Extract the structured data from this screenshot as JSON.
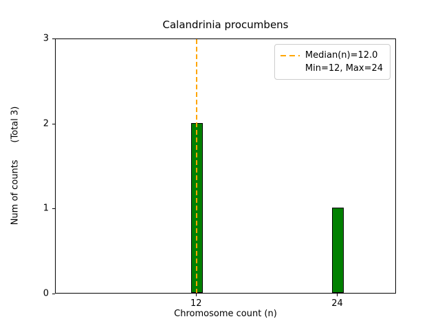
{
  "chart_data": {
    "type": "bar",
    "title": "Calandrinia procumbens",
    "xlabel": "Chromosome count (n)",
    "ylabel": "Num of counts      (Total 3)",
    "categories": [
      12,
      24
    ],
    "values": [
      2,
      1
    ],
    "xticks": [
      12,
      24
    ],
    "yticks": [
      0,
      1,
      2,
      3
    ],
    "xlim": [
      0,
      29
    ],
    "ylim": [
      0,
      3
    ],
    "bar_width_units": 1.0,
    "bar_color": "#008000",
    "bar_edge_color": "#000000",
    "grid": false,
    "median_line": {
      "x": 12.0,
      "color": "#FFA500",
      "style": "dashed"
    },
    "legend": {
      "position": "upper right",
      "entries": [
        {
          "label": "Median(n)=12.0",
          "sample": "orange-dashed-line"
        },
        {
          "label": "Min=12, Max=24",
          "sample": "none"
        }
      ]
    }
  }
}
